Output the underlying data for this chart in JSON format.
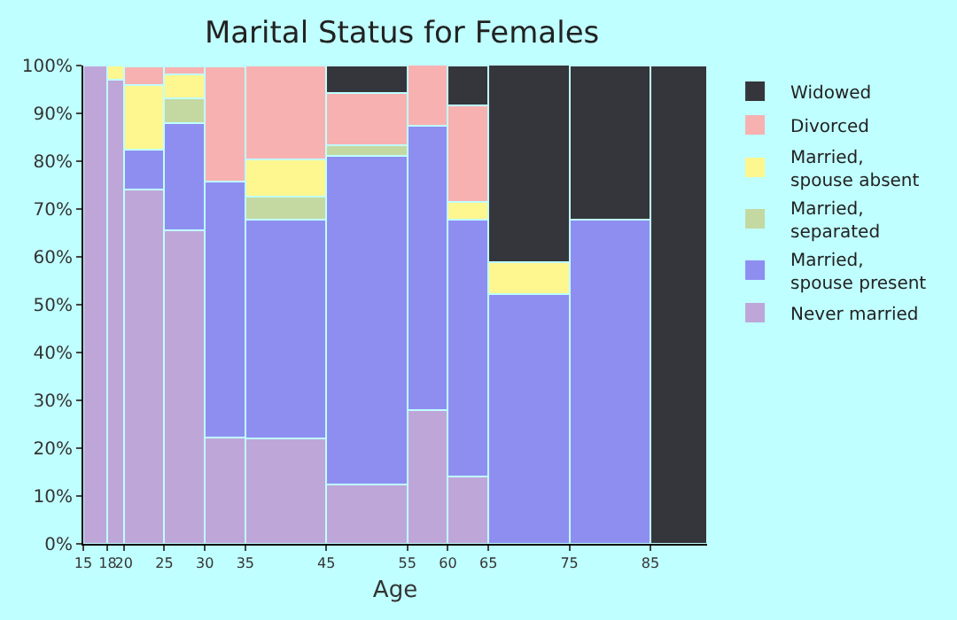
{
  "chart_data": {
    "type": "bar",
    "stacked": true,
    "title": "Marital Status for Females",
    "xlabel": "Age",
    "x": [
      16.5,
      19,
      22.5,
      27.5,
      32.5,
      40,
      50,
      57.5,
      62.5,
      70,
      80,
      88.5
    ],
    "xlim": [
      15,
      92
    ],
    "xticks": [
      15,
      18,
      20,
      25,
      30,
      35,
      45,
      55,
      60,
      65,
      75,
      85
    ],
    "ylim": [
      0,
      100
    ],
    "yticks": [
      {
        "value": 0,
        "label": "0%"
      },
      {
        "value": 10,
        "label": "10%"
      },
      {
        "value": 20,
        "label": "20%"
      },
      {
        "value": 30,
        "label": "30%"
      },
      {
        "value": 40,
        "label": "40%"
      },
      {
        "value": 50,
        "label": "50%"
      },
      {
        "value": 60,
        "label": "60%"
      },
      {
        "value": 70,
        "label": "70%"
      },
      {
        "value": 80,
        "label": "80%"
      },
      {
        "value": 90,
        "label": "90%"
      },
      {
        "value": 100,
        "label": "100%"
      }
    ],
    "legend": "right",
    "series": [
      {
        "name": "Never married",
        "color": "#bea6d8",
        "values": [
          100,
          97,
          74,
          65.5,
          22.3,
          22,
          12.5,
          28,
          14,
          0,
          0,
          0
        ]
      },
      {
        "name": "Married, spouse present",
        "color": "#8e8ef0",
        "values": [
          0,
          0,
          8.4,
          22.4,
          53.5,
          45.8,
          68.6,
          59.4,
          53.8,
          52.3,
          67.8,
          0
        ]
      },
      {
        "name": "Married, separated",
        "color": "#c4d8a1",
        "values": [
          0,
          0,
          0,
          5.2,
          0,
          4.8,
          2.2,
          0,
          0,
          0,
          0,
          0
        ]
      },
      {
        "name": "Married, spouse absent",
        "color": "#fef68e",
        "values": [
          0,
          3,
          13.6,
          5.1,
          0,
          7.7,
          0,
          0,
          3.7,
          6.6,
          0,
          0
        ]
      },
      {
        "name": "Divorced",
        "color": "#f8b1b1",
        "values": [
          0,
          0,
          3.9,
          1.7,
          24.1,
          19.7,
          11,
          12.7,
          20.2,
          0,
          0,
          0
        ]
      },
      {
        "name": "Widowed",
        "color": "#35363b",
        "values": [
          0,
          0,
          0,
          0,
          0,
          0,
          5.7,
          0,
          8.3,
          41.3,
          32.2,
          100
        ]
      }
    ]
  }
}
